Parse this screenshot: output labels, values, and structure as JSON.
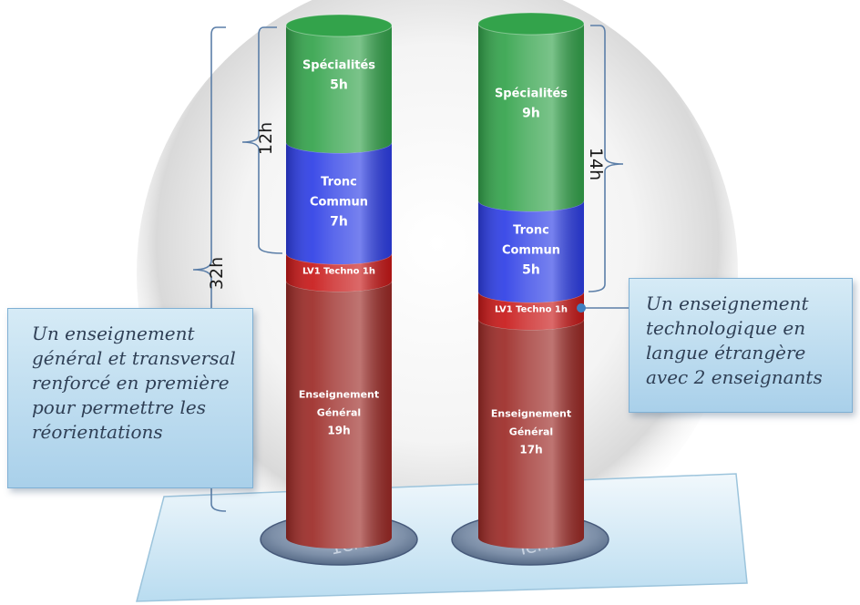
{
  "columns": [
    {
      "base_label": "1ère",
      "segments": [
        {
          "label_lines": [
            "Spécialités",
            "5h"
          ],
          "hours": 5,
          "color": "#33a34b"
        },
        {
          "label_lines": [
            "Tronc",
            "Commun",
            "7h"
          ],
          "hours": 7,
          "color": "#2d3ee6"
        },
        {
          "label_lines": [
            "LV1 Techno 1h"
          ],
          "hours": 1,
          "color": "#c81818"
        },
        {
          "label_lines": [
            "Enseignement",
            "Général",
            "19h"
          ],
          "hours": 19,
          "color": "#9c2a26"
        }
      ]
    },
    {
      "base_label": "Term.",
      "segments": [
        {
          "label_lines": [
            "Spécialités",
            "9h"
          ],
          "hours": 9,
          "color": "#33a34b"
        },
        {
          "label_lines": [
            "Tronc",
            "Commun",
            "5h"
          ],
          "hours": 5,
          "color": "#2d3ee6"
        },
        {
          "label_lines": [
            "LV1 Techno 1h"
          ],
          "hours": 1,
          "color": "#c81818"
        },
        {
          "label_lines": [
            "Enseignement",
            "Général",
            "17h"
          ],
          "hours": 17,
          "color": "#9c2a26"
        }
      ]
    }
  ],
  "braces": {
    "total": "32h",
    "first_specialty_common": "12h",
    "term_specialty_common": "14h"
  },
  "notes": {
    "left": [
      "Un enseignement",
      "général et transversal",
      "renforcé en première",
      "pour permettre les",
      "réorientations"
    ],
    "right": [
      "Un enseignement",
      "technologique en",
      "langue étrangère",
      "avec 2 enseignants"
    ]
  }
}
